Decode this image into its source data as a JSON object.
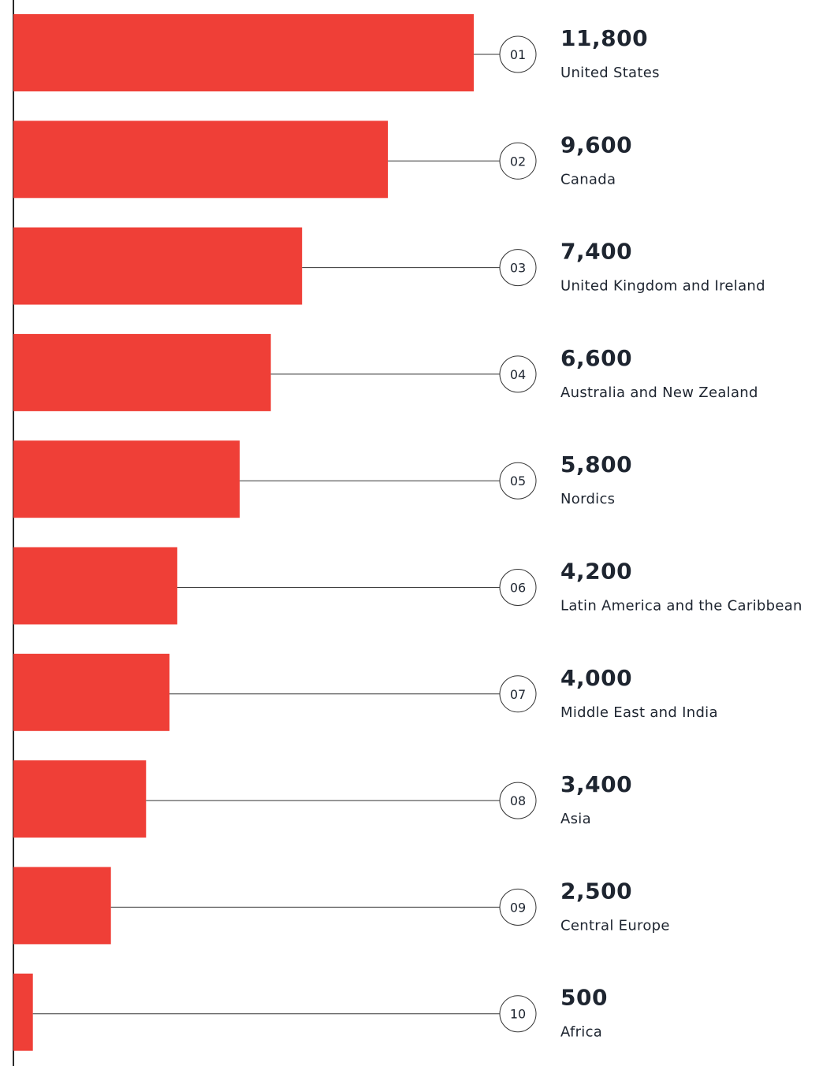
{
  "colors": {
    "bar": "#ef3f37",
    "text": "#1e2530",
    "axis": "#2a2a2a",
    "connector": "#333333",
    "circle_stroke": "#333333"
  },
  "chart_data": {
    "type": "bar",
    "orientation": "horizontal",
    "title": "",
    "xlabel": "",
    "ylabel": "",
    "grid": false,
    "legend": "none",
    "xlim": [
      0,
      11800
    ],
    "categories": [
      "United States",
      "Canada",
      "United Kingdom and Ireland",
      "Australia and New Zealand",
      "Nordics",
      "Latin America and the Caribbean",
      "Middle East and India",
      "Asia",
      "Central Europe",
      "Africa"
    ],
    "ranks": [
      "01",
      "02",
      "03",
      "04",
      "05",
      "06",
      "07",
      "08",
      "09",
      "10"
    ],
    "values": [
      11800,
      9600,
      7400,
      6600,
      5800,
      4200,
      4000,
      3400,
      2500,
      500
    ],
    "value_labels": [
      "11,800",
      "9,600",
      "7,400",
      "6,600",
      "5,800",
      "4,200",
      "4,000",
      "3,400",
      "2,500",
      "500"
    ]
  }
}
